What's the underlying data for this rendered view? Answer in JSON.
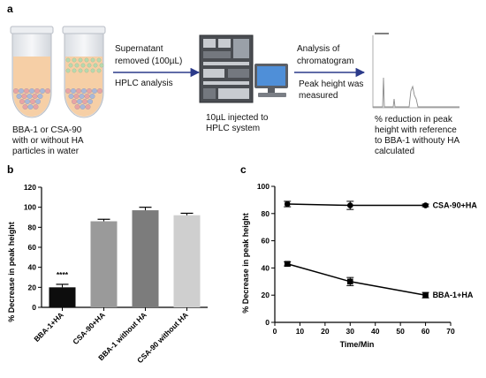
{
  "panels": {
    "a": "a",
    "b": "b",
    "c": "c"
  },
  "panel_a": {
    "tubes_caption": [
      "BBA-1 or CSA-90",
      "with or without HA",
      "particles in water"
    ],
    "arrow1_top": [
      "Supernatant",
      "removed (100µL)"
    ],
    "arrow1_bottom": "HPLC analysis",
    "hplc_caption": [
      "10µL injected to",
      "HPLC system"
    ],
    "arrow2_top": [
      "Analysis of",
      "chromatogram"
    ],
    "arrow2_bottom": [
      "Peak height was",
      "measured"
    ],
    "result_caption": [
      "% reduction in peak",
      "height with reference",
      "to BBA-1 withouty HA",
      "calculated"
    ],
    "colors": {
      "arrow": "#2b3a8a",
      "liquid": "#f6cfa6",
      "particles_pink": "#e9a4a4",
      "particles_blue": "#a9b8d9",
      "particles_green": "#b7d9b0"
    }
  },
  "chart_data": [
    {
      "type": "bar",
      "ylabel": "% Decrease in peak height",
      "ylim": [
        0,
        120
      ],
      "yticks": [
        "0",
        "20",
        "40",
        "60",
        "80",
        "100",
        "120"
      ],
      "categories": [
        "BBA-1+HA",
        "CSA-90+HA",
        "BBA-1 without HA",
        "CSA-90 without HA"
      ],
      "values": [
        20,
        86,
        97,
        92
      ],
      "errors": [
        3,
        2,
        3,
        2
      ],
      "colors": [
        "#0d0d0d",
        "#9a9a9a",
        "#7c7c7c",
        "#cfcfcf"
      ],
      "annotation": "****"
    },
    {
      "type": "line",
      "xlabel": "Time/Min",
      "ylabel": "% Decrease in peak height",
      "xlim": [
        0,
        70
      ],
      "ylim": [
        0,
        100
      ],
      "xticks": [
        "0",
        "10",
        "20",
        "30",
        "40",
        "50",
        "60",
        "70"
      ],
      "yticks": [
        "0",
        "20",
        "40",
        "60",
        "80",
        "100"
      ],
      "series": [
        {
          "name": "CSA-90+HA",
          "marker": "circle",
          "x": [
            5,
            30,
            60
          ],
          "y": [
            87,
            86,
            86
          ],
          "err": [
            2,
            3,
            1
          ]
        },
        {
          "name": "BBA-1+HA",
          "marker": "square",
          "x": [
            5,
            30,
            60
          ],
          "y": [
            43,
            30,
            20
          ],
          "err": [
            1.5,
            3,
            2
          ]
        }
      ]
    }
  ]
}
